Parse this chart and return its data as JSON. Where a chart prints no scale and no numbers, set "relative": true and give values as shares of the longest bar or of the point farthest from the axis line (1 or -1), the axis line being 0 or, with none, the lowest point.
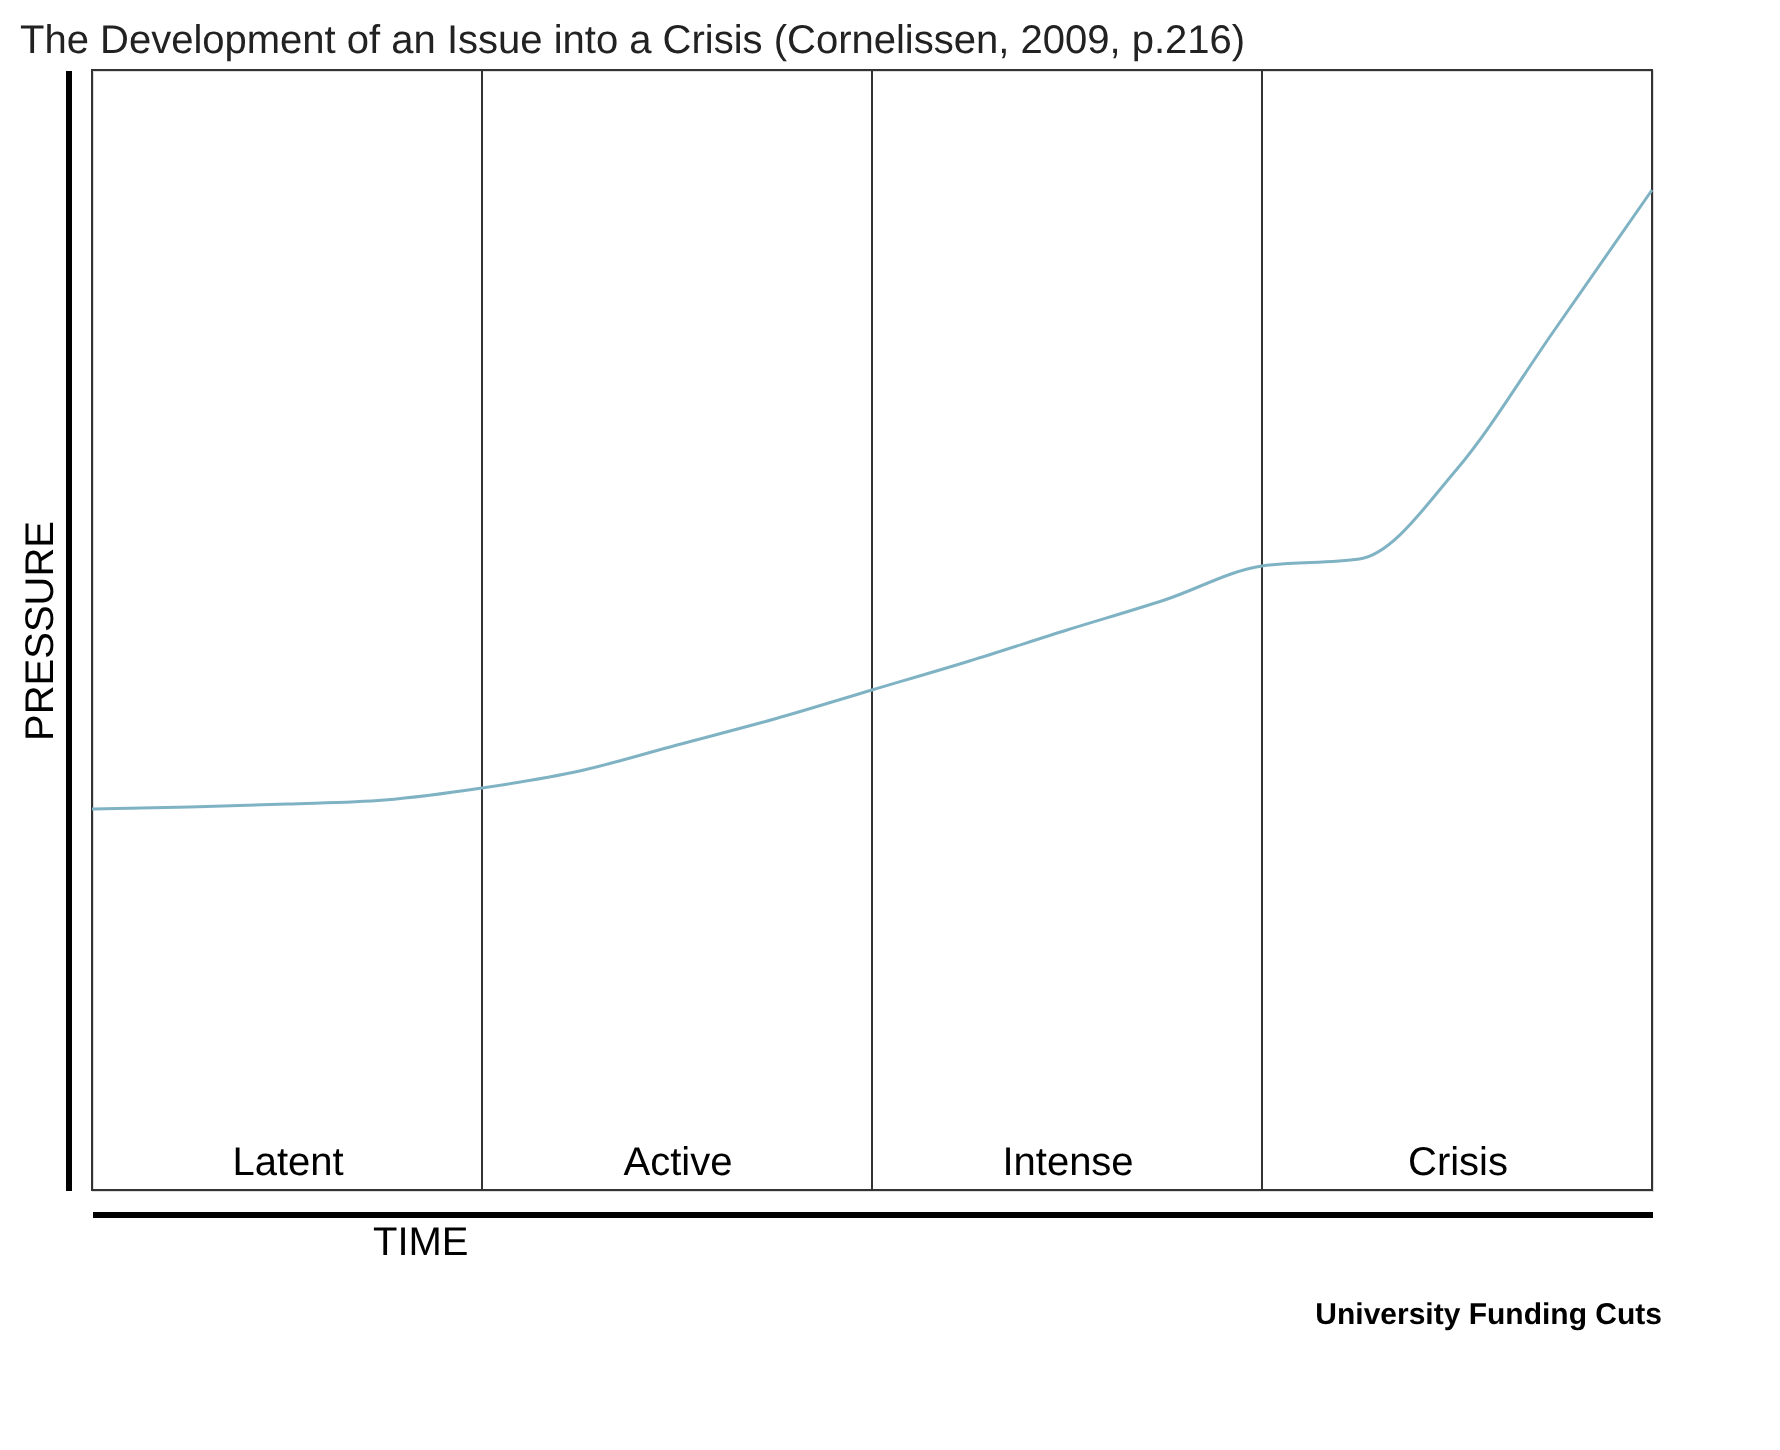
{
  "chart_data": {
    "type": "line",
    "title": "The Development of an Issue into a Crisis (Cornelissen, 2009, p.216)",
    "xlabel": "TIME",
    "ylabel": "PRESSURE",
    "relative": true,
    "grid": "x",
    "categories": [
      null,
      null,
      "Latent",
      null,
      null,
      null,
      "Active",
      null,
      null,
      null,
      "Intense",
      null,
      null,
      null,
      "Crisis",
      null,
      null
    ],
    "series": [
      {
        "color": "#7fb3c4",
        "values": [
          0.381,
          0.383,
          0.386,
          0.39,
          0.402,
          0.419,
          0.445,
          0.471,
          0.5,
          0.529,
          0.56,
          0.59,
          0.624,
          0.631,
          0.721,
          0.86,
          1
        ]
      }
    ],
    "annotations": [
      "University Funding Cuts"
    ]
  }
}
